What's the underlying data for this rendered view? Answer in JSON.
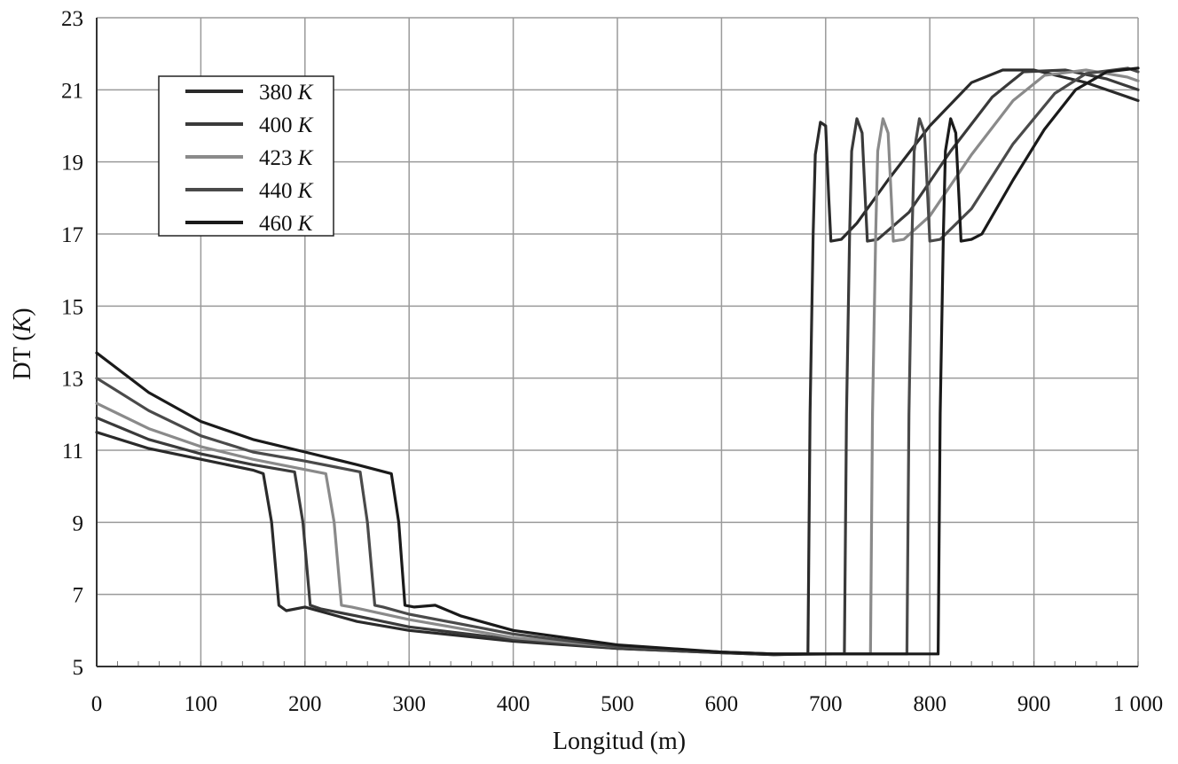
{
  "chart_data": {
    "type": "line",
    "xlabel": "Longitud (m)",
    "ylabel_prefix": "DT (",
    "ylabel_unit": "K",
    "ylabel_suffix": ")",
    "xlim": [
      0,
      1000
    ],
    "ylim": [
      5,
      23
    ],
    "x_ticks": [
      0,
      100,
      200,
      300,
      400,
      500,
      600,
      700,
      800,
      900,
      1000
    ],
    "x_tick_labels": [
      "0",
      "100",
      "200",
      "300",
      "400",
      "500",
      "600",
      "700",
      "800",
      "900",
      "1 000"
    ],
    "y_ticks": [
      5,
      7,
      9,
      11,
      13,
      15,
      17,
      19,
      21,
      23
    ],
    "y_tick_labels": [
      "5",
      "7",
      "9",
      "11",
      "13",
      "15",
      "17",
      "19",
      "21",
      "23"
    ],
    "grid": true,
    "legend_position": "top-left",
    "series": [
      {
        "name_value": "380 ",
        "name_unit": "K",
        "color": "#2a2a2a",
        "points": [
          [
            0,
            11.5
          ],
          [
            50,
            11.05
          ],
          [
            100,
            10.75
          ],
          [
            150,
            10.45
          ],
          [
            160,
            10.35
          ],
          [
            168,
            9.0
          ],
          [
            175,
            6.7
          ],
          [
            182,
            6.55
          ],
          [
            200,
            6.65
          ],
          [
            250,
            6.25
          ],
          [
            300,
            6.0
          ],
          [
            400,
            5.7
          ],
          [
            500,
            5.5
          ],
          [
            600,
            5.38
          ],
          [
            650,
            5.33
          ],
          [
            683,
            5.35
          ],
          [
            685,
            12.0
          ],
          [
            688,
            17.0
          ],
          [
            690,
            19.2
          ],
          [
            695,
            20.1
          ],
          [
            700,
            20.0
          ],
          [
            703,
            18.0
          ],
          [
            705,
            16.8
          ],
          [
            715,
            16.85
          ],
          [
            730,
            17.3
          ],
          [
            760,
            18.5
          ],
          [
            800,
            20.0
          ],
          [
            840,
            21.2
          ],
          [
            870,
            21.55
          ],
          [
            900,
            21.55
          ],
          [
            950,
            21.2
          ],
          [
            1000,
            20.7
          ]
        ]
      },
      {
        "name_value": "400 ",
        "name_unit": "K",
        "color": "#3a3a3a",
        "points": [
          [
            0,
            11.9
          ],
          [
            50,
            11.3
          ],
          [
            100,
            10.9
          ],
          [
            150,
            10.6
          ],
          [
            190,
            10.4
          ],
          [
            198,
            9.0
          ],
          [
            205,
            6.7
          ],
          [
            215,
            6.6
          ],
          [
            250,
            6.4
          ],
          [
            300,
            6.1
          ],
          [
            400,
            5.75
          ],
          [
            500,
            5.5
          ],
          [
            600,
            5.38
          ],
          [
            650,
            5.33
          ],
          [
            718,
            5.35
          ],
          [
            720,
            12.0
          ],
          [
            723,
            17.0
          ],
          [
            725,
            19.3
          ],
          [
            730,
            20.2
          ],
          [
            735,
            19.8
          ],
          [
            738,
            18.0
          ],
          [
            740,
            16.8
          ],
          [
            750,
            16.85
          ],
          [
            780,
            17.6
          ],
          [
            820,
            19.3
          ],
          [
            860,
            20.8
          ],
          [
            890,
            21.5
          ],
          [
            930,
            21.55
          ],
          [
            970,
            21.3
          ],
          [
            1000,
            21.0
          ]
        ]
      },
      {
        "name_value": "423 ",
        "name_unit": "K",
        "color": "#8a8a8a",
        "points": [
          [
            0,
            12.3
          ],
          [
            50,
            11.6
          ],
          [
            100,
            11.1
          ],
          [
            150,
            10.75
          ],
          [
            220,
            10.35
          ],
          [
            228,
            9.0
          ],
          [
            235,
            6.7
          ],
          [
            245,
            6.65
          ],
          [
            300,
            6.3
          ],
          [
            400,
            5.8
          ],
          [
            500,
            5.55
          ],
          [
            600,
            5.4
          ],
          [
            650,
            5.35
          ],
          [
            743,
            5.35
          ],
          [
            745,
            12.0
          ],
          [
            748,
            17.0
          ],
          [
            750,
            19.3
          ],
          [
            755,
            20.2
          ],
          [
            760,
            19.8
          ],
          [
            763,
            18.0
          ],
          [
            765,
            16.8
          ],
          [
            775,
            16.85
          ],
          [
            800,
            17.5
          ],
          [
            840,
            19.2
          ],
          [
            880,
            20.7
          ],
          [
            910,
            21.4
          ],
          [
            950,
            21.55
          ],
          [
            990,
            21.35
          ],
          [
            1000,
            21.25
          ]
        ]
      },
      {
        "name_value": "440 ",
        "name_unit": "K",
        "color": "#4a4a4a",
        "points": [
          [
            0,
            13.0
          ],
          [
            50,
            12.1
          ],
          [
            100,
            11.4
          ],
          [
            150,
            10.95
          ],
          [
            200,
            10.7
          ],
          [
            253,
            10.4
          ],
          [
            260,
            9.0
          ],
          [
            267,
            6.7
          ],
          [
            275,
            6.65
          ],
          [
            300,
            6.45
          ],
          [
            400,
            5.9
          ],
          [
            500,
            5.55
          ],
          [
            600,
            5.4
          ],
          [
            650,
            5.35
          ],
          [
            778,
            5.35
          ],
          [
            780,
            12.0
          ],
          [
            783,
            17.0
          ],
          [
            785,
            19.3
          ],
          [
            790,
            20.2
          ],
          [
            795,
            19.8
          ],
          [
            798,
            18.0
          ],
          [
            800,
            16.8
          ],
          [
            810,
            16.85
          ],
          [
            840,
            17.7
          ],
          [
            880,
            19.5
          ],
          [
            920,
            20.9
          ],
          [
            950,
            21.45
          ],
          [
            990,
            21.6
          ],
          [
            1000,
            21.5
          ]
        ]
      },
      {
        "name_value": "460 ",
        "name_unit": "K",
        "color": "#1a1a1a",
        "points": [
          [
            0,
            13.7
          ],
          [
            50,
            12.6
          ],
          [
            100,
            11.8
          ],
          [
            150,
            11.3
          ],
          [
            200,
            10.95
          ],
          [
            250,
            10.6
          ],
          [
            283,
            10.35
          ],
          [
            290,
            9.0
          ],
          [
            296,
            6.7
          ],
          [
            305,
            6.65
          ],
          [
            325,
            6.7
          ],
          [
            350,
            6.4
          ],
          [
            400,
            6.0
          ],
          [
            500,
            5.6
          ],
          [
            600,
            5.4
          ],
          [
            650,
            5.35
          ],
          [
            808,
            5.35
          ],
          [
            810,
            12.0
          ],
          [
            813,
            17.0
          ],
          [
            815,
            19.3
          ],
          [
            820,
            20.2
          ],
          [
            825,
            19.8
          ],
          [
            828,
            18.0
          ],
          [
            830,
            16.8
          ],
          [
            840,
            16.85
          ],
          [
            850,
            17.0
          ],
          [
            880,
            18.5
          ],
          [
            910,
            19.9
          ],
          [
            940,
            21.0
          ],
          [
            970,
            21.5
          ],
          [
            1000,
            21.6
          ]
        ]
      }
    ]
  }
}
